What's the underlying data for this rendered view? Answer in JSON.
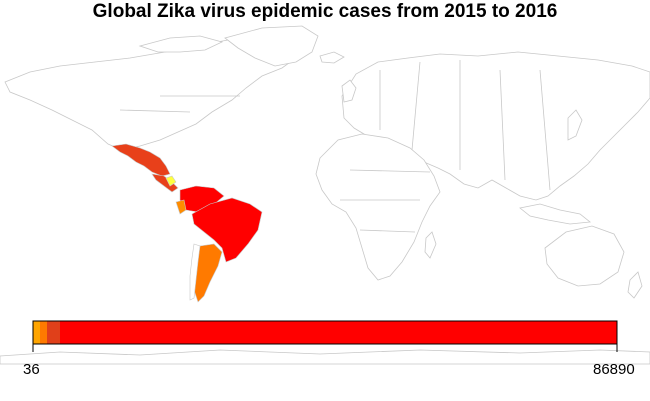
{
  "title": "Global Zika virus epidemic cases from 2015 to 2016",
  "legend": {
    "min_label": "36",
    "max_label": "86890",
    "segments": [
      {
        "color": "#FFA500",
        "from": 36,
        "to": 800
      },
      {
        "color": "#FF7A00",
        "from": 800,
        "to": 2000
      },
      {
        "color": "#E0401A",
        "from": 2000,
        "to": 3500
      },
      {
        "color": "#FF0000",
        "from": 3500,
        "to": 86890
      }
    ]
  },
  "colors": {
    "land_fill": "#FFFFFF",
    "border": "#C8C8C8",
    "mexico": "#E8401A",
    "central_america": "#E8401A",
    "caribbean_highlight": "#FFFF40",
    "colombia": "#FF0000",
    "venezuela": "#FF0000",
    "brazil": "#FF0000",
    "ecuador": "#FF8C00",
    "argentina": "#FF7A00"
  }
}
